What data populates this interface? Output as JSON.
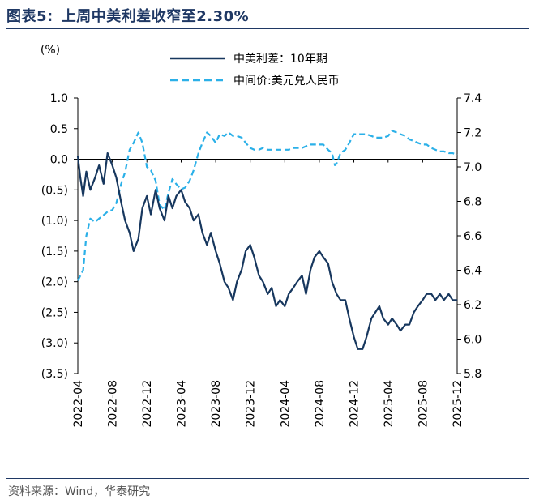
{
  "figure": {
    "label": "图表5:",
    "title": "上周中美利差收窄至2.30%",
    "source": "资料来源：Wind，华泰研究"
  },
  "chart_data": {
    "type": "line",
    "y_unit_label": "(%)",
    "legend": [
      {
        "name": "中美利差：10年期",
        "color": "#17375e",
        "style": "solid",
        "axis": "left"
      },
      {
        "name": "中间价:美元兑人民币",
        "color": "#2bb0e8",
        "style": "dashed",
        "axis": "right"
      }
    ],
    "legend_position": "top",
    "grid": false,
    "x_ticks": [
      "2022-04",
      "2022-08",
      "2022-12",
      "2023-04",
      "2023-08",
      "2023-12",
      "2024-04",
      "2024-08",
      "2024-12",
      "2025-04",
      "2025-08",
      "2025-12"
    ],
    "y_left": {
      "range": [
        -3.5,
        1.0
      ],
      "ticks": [
        1.0,
        0.5,
        0.0,
        -0.5,
        -1.0,
        -1.5,
        -2.0,
        -2.5,
        -3.0,
        -3.5
      ],
      "tick_labels": [
        "1.0",
        "0.5",
        "0.0",
        "(0.5)",
        "(1.0)",
        "(1.5)",
        "(2.0)",
        "(2.5)",
        "(3.0)",
        "(3.5)"
      ]
    },
    "y_right": {
      "range": [
        5.8,
        7.4
      ],
      "ticks": [
        7.4,
        7.2,
        7.0,
        6.8,
        6.6,
        6.4,
        6.2,
        6.0,
        5.8
      ],
      "tick_labels": [
        "7.4",
        "7.2",
        "7.0",
        "6.8",
        "6.6",
        "6.4",
        "6.2",
        "6.0",
        "5.8"
      ]
    },
    "series": [
      {
        "name": "中美利差：10年期",
        "axis": "left",
        "points": [
          [
            "2022-04-01",
            0.05
          ],
          [
            "2022-04-10",
            -0.3
          ],
          [
            "2022-04-20",
            -0.6
          ],
          [
            "2022-05-01",
            -0.2
          ],
          [
            "2022-05-15",
            -0.5
          ],
          [
            "2022-06-01",
            -0.3
          ],
          [
            "2022-06-15",
            -0.1
          ],
          [
            "2022-07-01",
            -0.4
          ],
          [
            "2022-07-15",
            0.1
          ],
          [
            "2022-08-01",
            -0.1
          ],
          [
            "2022-08-15",
            -0.3
          ],
          [
            "2022-09-01",
            -0.7
          ],
          [
            "2022-09-15",
            -1.0
          ],
          [
            "2022-10-01",
            -1.2
          ],
          [
            "2022-10-15",
            -1.5
          ],
          [
            "2022-11-01",
            -1.3
          ],
          [
            "2022-11-15",
            -0.8
          ],
          [
            "2022-12-01",
            -0.6
          ],
          [
            "2022-12-15",
            -0.9
          ],
          [
            "2023-01-01",
            -0.5
          ],
          [
            "2023-01-15",
            -0.8
          ],
          [
            "2023-02-01",
            -1.0
          ],
          [
            "2023-02-15",
            -0.6
          ],
          [
            "2023-03-01",
            -0.8
          ],
          [
            "2023-03-15",
            -0.6
          ],
          [
            "2023-04-01",
            -0.5
          ],
          [
            "2023-04-15",
            -0.7
          ],
          [
            "2023-05-01",
            -0.8
          ],
          [
            "2023-05-15",
            -1.0
          ],
          [
            "2023-06-01",
            -0.9
          ],
          [
            "2023-06-15",
            -1.2
          ],
          [
            "2023-07-01",
            -1.4
          ],
          [
            "2023-07-15",
            -1.2
          ],
          [
            "2023-08-01",
            -1.5
          ],
          [
            "2023-08-15",
            -1.7
          ],
          [
            "2023-09-01",
            -2.0
          ],
          [
            "2023-09-15",
            -2.1
          ],
          [
            "2023-10-01",
            -2.3
          ],
          [
            "2023-10-15",
            -2.0
          ],
          [
            "2023-11-01",
            -1.8
          ],
          [
            "2023-11-15",
            -1.5
          ],
          [
            "2023-12-01",
            -1.4
          ],
          [
            "2023-12-15",
            -1.6
          ],
          [
            "2024-01-01",
            -1.9
          ],
          [
            "2024-01-15",
            -2.0
          ],
          [
            "2024-02-01",
            -2.2
          ],
          [
            "2024-02-15",
            -2.1
          ],
          [
            "2024-03-01",
            -2.4
          ],
          [
            "2024-03-15",
            -2.3
          ],
          [
            "2024-04-01",
            -2.4
          ],
          [
            "2024-04-15",
            -2.2
          ],
          [
            "2024-05-01",
            -2.1
          ],
          [
            "2024-05-15",
            -2.0
          ],
          [
            "2024-06-01",
            -1.9
          ],
          [
            "2024-06-15",
            -2.2
          ],
          [
            "2024-07-01",
            -1.8
          ],
          [
            "2024-07-15",
            -1.6
          ],
          [
            "2024-08-01",
            -1.5
          ],
          [
            "2024-08-15",
            -1.6
          ],
          [
            "2024-09-01",
            -1.7
          ],
          [
            "2024-09-15",
            -2.0
          ],
          [
            "2024-10-01",
            -2.2
          ],
          [
            "2024-10-15",
            -2.3
          ],
          [
            "2024-11-01",
            -2.3
          ],
          [
            "2024-11-15",
            -2.6
          ],
          [
            "2024-12-01",
            -2.9
          ],
          [
            "2024-12-15",
            -3.1
          ],
          [
            "2025-01-01",
            -3.1
          ],
          [
            "2025-01-15",
            -2.9
          ],
          [
            "2025-02-01",
            -2.6
          ],
          [
            "2025-02-15",
            -2.5
          ],
          [
            "2025-03-01",
            -2.4
          ],
          [
            "2025-03-15",
            -2.6
          ],
          [
            "2025-04-01",
            -2.7
          ],
          [
            "2025-04-15",
            -2.6
          ],
          [
            "2025-05-01",
            -2.7
          ],
          [
            "2025-05-15",
            -2.8
          ],
          [
            "2025-06-01",
            -2.7
          ],
          [
            "2025-06-15",
            -2.7
          ],
          [
            "2025-07-01",
            -2.5
          ],
          [
            "2025-07-15",
            -2.4
          ],
          [
            "2025-08-01",
            -2.3
          ],
          [
            "2025-08-15",
            -2.2
          ],
          [
            "2025-09-01",
            -2.2
          ],
          [
            "2025-09-15",
            -2.3
          ],
          [
            "2025-10-01",
            -2.2
          ],
          [
            "2025-10-15",
            -2.3
          ],
          [
            "2025-11-01",
            -2.2
          ],
          [
            "2025-11-15",
            -2.3
          ],
          [
            "2025-12-01",
            -2.3
          ]
        ]
      },
      {
        "name": "中间价:美元兑人民币",
        "axis": "right",
        "points": [
          [
            "2022-04-01",
            6.34
          ],
          [
            "2022-04-20",
            6.4
          ],
          [
            "2022-05-01",
            6.6
          ],
          [
            "2022-05-15",
            6.7
          ],
          [
            "2022-06-01",
            6.68
          ],
          [
            "2022-06-15",
            6.7
          ],
          [
            "2022-07-01",
            6.72
          ],
          [
            "2022-07-15",
            6.74
          ],
          [
            "2022-08-01",
            6.75
          ],
          [
            "2022-08-15",
            6.79
          ],
          [
            "2022-09-01",
            6.9
          ],
          [
            "2022-09-15",
            6.97
          ],
          [
            "2022-10-01",
            7.1
          ],
          [
            "2022-10-15",
            7.14
          ],
          [
            "2022-11-01",
            7.2
          ],
          [
            "2022-11-15",
            7.14
          ],
          [
            "2022-12-01",
            7.0
          ],
          [
            "2022-12-15",
            6.98
          ],
          [
            "2023-01-01",
            6.92
          ],
          [
            "2023-01-15",
            6.78
          ],
          [
            "2023-02-01",
            6.75
          ],
          [
            "2023-02-15",
            6.85
          ],
          [
            "2023-03-01",
            6.93
          ],
          [
            "2023-03-15",
            6.9
          ],
          [
            "2023-04-01",
            6.87
          ],
          [
            "2023-04-15",
            6.88
          ],
          [
            "2023-05-01",
            6.92
          ],
          [
            "2023-05-15",
            6.98
          ],
          [
            "2023-06-01",
            7.08
          ],
          [
            "2023-06-15",
            7.14
          ],
          [
            "2023-07-01",
            7.2
          ],
          [
            "2023-07-15",
            7.18
          ],
          [
            "2023-08-01",
            7.14
          ],
          [
            "2023-08-15",
            7.19
          ],
          [
            "2023-09-01",
            7.18
          ],
          [
            "2023-09-15",
            7.2
          ],
          [
            "2023-10-01",
            7.18
          ],
          [
            "2023-10-15",
            7.18
          ],
          [
            "2023-11-01",
            7.17
          ],
          [
            "2023-11-15",
            7.14
          ],
          [
            "2023-12-01",
            7.11
          ],
          [
            "2023-12-15",
            7.1
          ],
          [
            "2024-01-01",
            7.1
          ],
          [
            "2024-01-15",
            7.11
          ],
          [
            "2024-02-01",
            7.1
          ],
          [
            "2024-02-15",
            7.1
          ],
          [
            "2024-03-01",
            7.1
          ],
          [
            "2024-03-15",
            7.1
          ],
          [
            "2024-04-01",
            7.1
          ],
          [
            "2024-04-15",
            7.1
          ],
          [
            "2024-05-01",
            7.11
          ],
          [
            "2024-05-15",
            7.11
          ],
          [
            "2024-06-01",
            7.11
          ],
          [
            "2024-06-15",
            7.12
          ],
          [
            "2024-07-01",
            7.13
          ],
          [
            "2024-07-15",
            7.13
          ],
          [
            "2024-08-01",
            7.13
          ],
          [
            "2024-08-15",
            7.13
          ],
          [
            "2024-09-01",
            7.1
          ],
          [
            "2024-09-15",
            7.08
          ],
          [
            "2024-09-25",
            7.01
          ],
          [
            "2024-10-01",
            7.02
          ],
          [
            "2024-10-15",
            7.08
          ],
          [
            "2024-11-01",
            7.1
          ],
          [
            "2024-11-15",
            7.14
          ],
          [
            "2024-12-01",
            7.19
          ],
          [
            "2024-12-15",
            7.19
          ],
          [
            "2025-01-01",
            7.19
          ],
          [
            "2025-01-15",
            7.19
          ],
          [
            "2025-02-01",
            7.18
          ],
          [
            "2025-02-15",
            7.17
          ],
          [
            "2025-03-01",
            7.17
          ],
          [
            "2025-03-15",
            7.17
          ],
          [
            "2025-04-01",
            7.18
          ],
          [
            "2025-04-15",
            7.21
          ],
          [
            "2025-05-01",
            7.2
          ],
          [
            "2025-05-15",
            7.19
          ],
          [
            "2025-06-01",
            7.18
          ],
          [
            "2025-06-15",
            7.16
          ],
          [
            "2025-07-01",
            7.15
          ],
          [
            "2025-07-15",
            7.14
          ],
          [
            "2025-08-01",
            7.13
          ],
          [
            "2025-08-15",
            7.13
          ],
          [
            "2025-09-01",
            7.11
          ],
          [
            "2025-09-15",
            7.1
          ],
          [
            "2025-10-01",
            7.09
          ],
          [
            "2025-10-15",
            7.09
          ],
          [
            "2025-11-01",
            7.08
          ],
          [
            "2025-11-15",
            7.08
          ],
          [
            "2025-12-01",
            7.07
          ]
        ]
      }
    ]
  }
}
